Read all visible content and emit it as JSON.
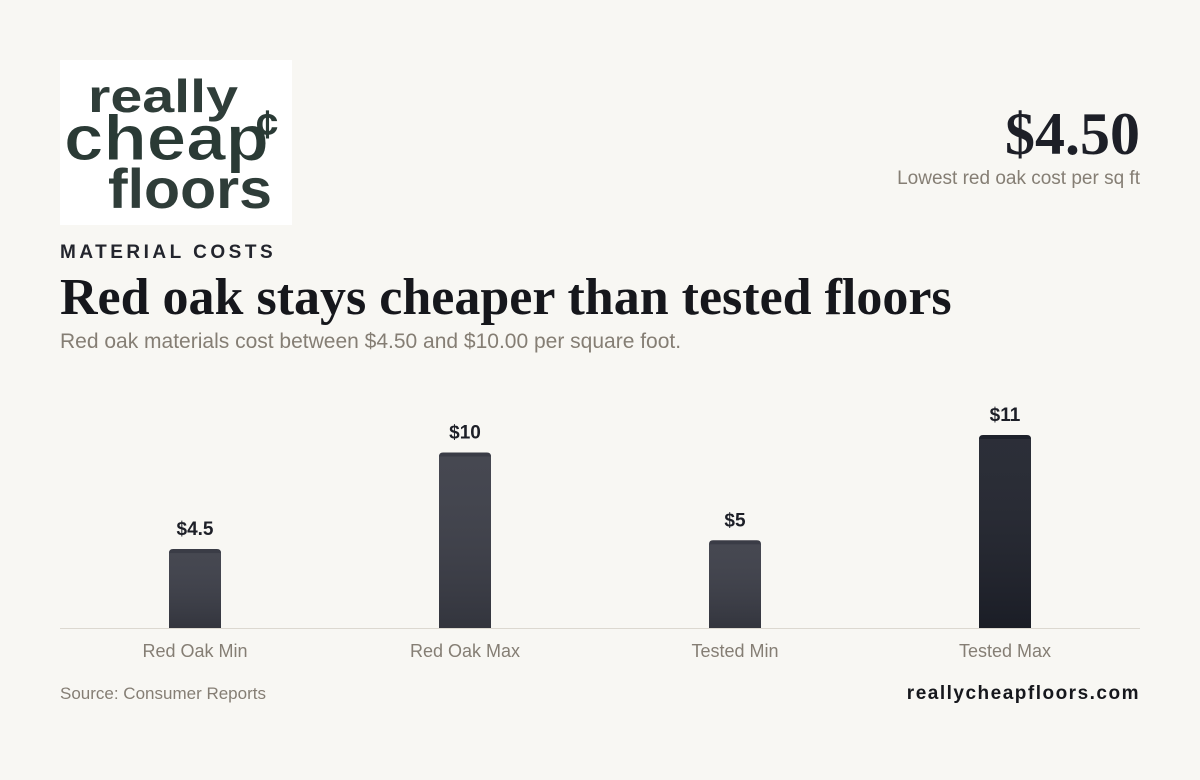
{
  "logo": {
    "lines": [
      "really",
      "cheap",
      "¢",
      "floors"
    ]
  },
  "kpi": {
    "value": "$4.50",
    "label": "Lowest red oak cost per sq ft"
  },
  "kicker": "MATERIAL COSTS",
  "source": "Source: Consumer Reports",
  "site": "reallycheapfloors.com",
  "chart_data": {
    "type": "bar",
    "title": "Red oak stays cheaper than tested floors",
    "subtitle": "Red oak materials cost between $4.50 and $10.00 per square foot.",
    "categories": [
      "Red Oak Min",
      "Red Oak Max",
      "Tested Min",
      "Tested Max"
    ],
    "values": [
      4.5,
      10,
      5,
      11
    ],
    "value_labels": [
      "$4.5",
      "$10",
      "$5",
      "$11"
    ],
    "colors": [
      "#3a3c46",
      "#3a3c46",
      "#3a3c46",
      "#1e212b"
    ]
  }
}
